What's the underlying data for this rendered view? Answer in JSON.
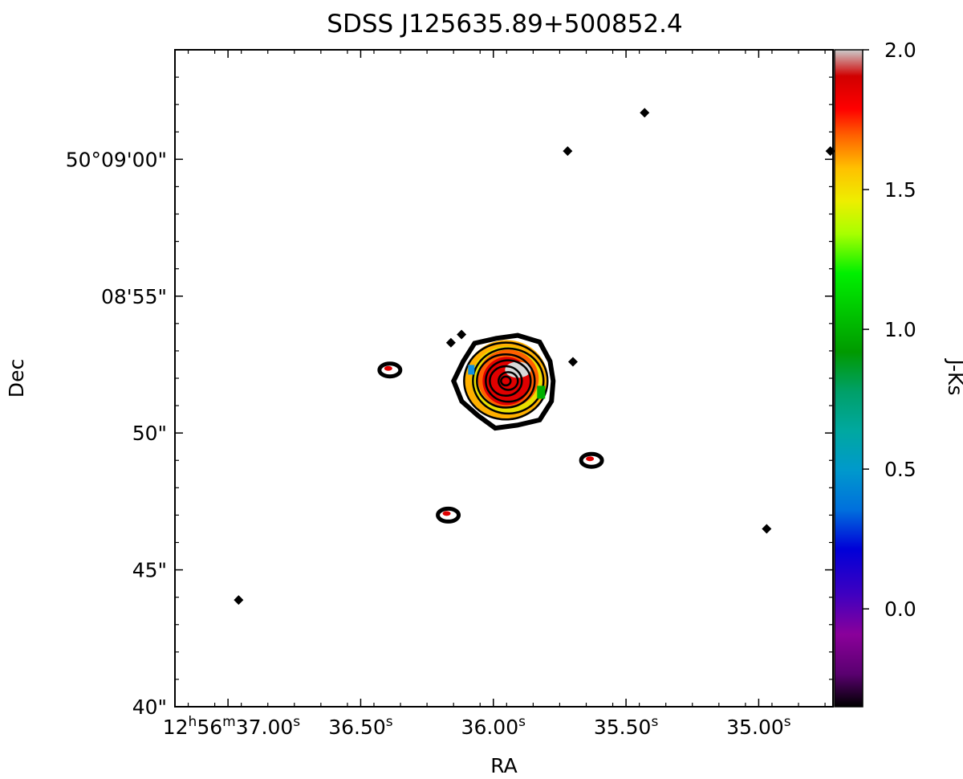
{
  "chart_data": {
    "type": "heatmap",
    "title": "SDSS J125635.89+500852.4",
    "xlabel": "RA",
    "ylabel": "Dec",
    "xlim_seconds": [
      37.2,
      34.72
    ],
    "ylim_arcsec": [
      40,
      64
    ],
    "x_ticks": [
      {
        "value": 37.0,
        "label_main": "12",
        "sup_h": "h",
        "label_mid": "56",
        "sup_m": "m",
        "label_end": "37.00",
        "sup_s": "s"
      },
      {
        "value": 36.5,
        "label_main": "36.50",
        "sup_s": "s"
      },
      {
        "value": 36.0,
        "label_main": "36.00",
        "sup_s": "s"
      },
      {
        "value": 35.5,
        "label_main": "35.50",
        "sup_s": "s"
      },
      {
        "value": 35.0,
        "label_main": "35.00",
        "sup_s": "s"
      }
    ],
    "y_ticks": [
      {
        "value": 60,
        "label": "50°09'00\""
      },
      {
        "value": 55,
        "label": "08'55\""
      },
      {
        "value": 50,
        "label": "50\""
      },
      {
        "value": 45,
        "label": "45\""
      },
      {
        "value": 40,
        "label": "40\""
      }
    ],
    "colorbar": {
      "label": "J-Ks",
      "range": [
        -0.35,
        2.0
      ],
      "ticks": [
        {
          "value": 2.0,
          "label": "2.0"
        },
        {
          "value": 1.5,
          "label": "1.5"
        },
        {
          "value": 1.0,
          "label": "1.0"
        },
        {
          "value": 0.5,
          "label": "0.5"
        },
        {
          "value": 0.0,
          "label": "0.0"
        }
      ],
      "colormap": "nipy_spectral"
    },
    "sources": [
      {
        "ra_s": 35.95,
        "dec_as": 51.9,
        "type": "galaxy",
        "j_ks_core": 1.8
      },
      {
        "ra_s": 36.39,
        "dec_as": 52.3,
        "type": "blob"
      },
      {
        "ra_s": 36.17,
        "dec_as": 47.0,
        "type": "blob"
      },
      {
        "ra_s": 35.63,
        "dec_as": 49.0,
        "type": "blob"
      },
      {
        "ra_s": 35.72,
        "dec_as": 60.3,
        "type": "point"
      },
      {
        "ra_s": 35.43,
        "dec_as": 61.7,
        "type": "point"
      },
      {
        "ra_s": 34.73,
        "dec_as": 60.3,
        "type": "point"
      },
      {
        "ra_s": 34.97,
        "dec_as": 46.5,
        "type": "point"
      },
      {
        "ra_s": 36.96,
        "dec_as": 43.9,
        "type": "point"
      },
      {
        "ra_s": 36.12,
        "dec_as": 53.6,
        "type": "point"
      },
      {
        "ra_s": 36.16,
        "dec_as": 53.3,
        "type": "point"
      },
      {
        "ra_s": 35.7,
        "dec_as": 52.6,
        "type": "point"
      }
    ]
  }
}
